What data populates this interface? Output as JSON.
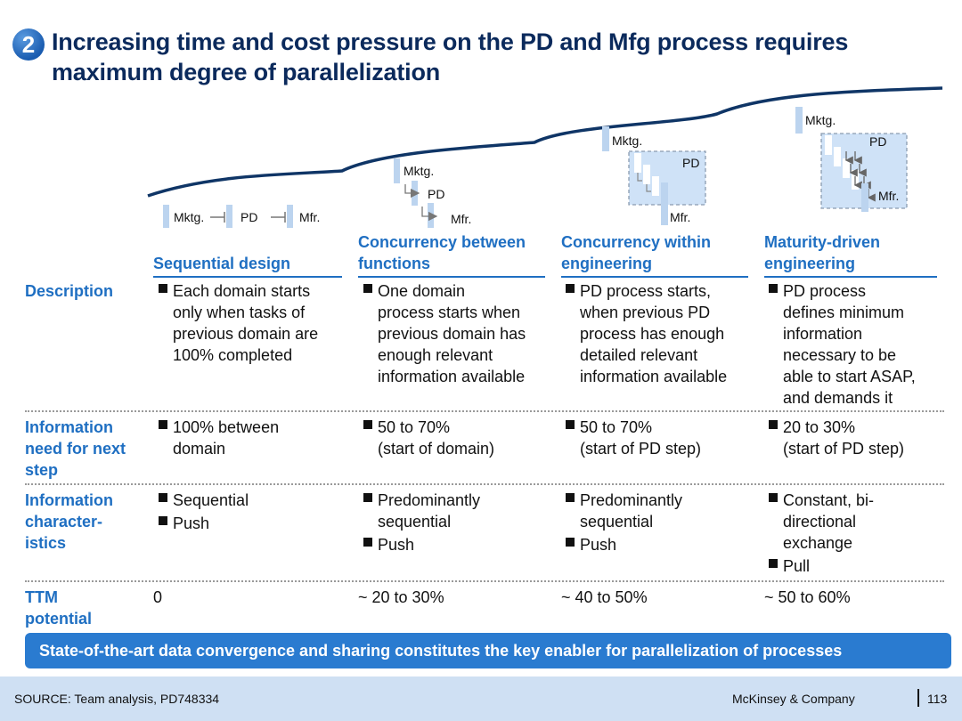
{
  "title": {
    "badge": "2",
    "line1": "Increasing time and cost pressure on the PD and Mfg process requires",
    "line2": "maximum degree of parallelization"
  },
  "diagram": {
    "mktg": "Mktg.",
    "pd": "PD",
    "mfr": "Mfr."
  },
  "columns": [
    {
      "heading_l1": "",
      "heading_l2": "Sequential design"
    },
    {
      "heading_l1": "Concurrency between",
      "heading_l2": "functions"
    },
    {
      "heading_l1": "Concurrency within",
      "heading_l2": "engineering"
    },
    {
      "heading_l1": "Maturity-driven",
      "heading_l2": "engineering"
    }
  ],
  "rows": {
    "description": {
      "label": "Description",
      "cells": [
        [
          "Each domain starts",
          "only when tasks of",
          "previous domain are",
          "100% completed"
        ],
        [
          "One domain",
          "process starts when",
          "previous domain has",
          "enough relevant",
          "information available"
        ],
        [
          "PD process starts,",
          "when previous PD",
          "process has enough",
          "detailed relevant",
          "information available"
        ],
        [
          "PD process",
          "defines minimum",
          "information",
          "necessary to be",
          "able to start ASAP,",
          "and demands it"
        ]
      ]
    },
    "info_need": {
      "label_l1": "Information",
      "label_l2": "need for next",
      "label_l3": "step",
      "cells": [
        [
          "100% between",
          "domain"
        ],
        [
          "50 to 70%",
          "(start of domain)"
        ],
        [
          "50 to 70%",
          "(start of PD step)"
        ],
        [
          "20 to 30%",
          "(start of PD step)"
        ]
      ]
    },
    "info_char": {
      "label_l1": "Information",
      "label_l2": "character-",
      "label_l3": "istics",
      "c1_b1": "Sequential",
      "c1_b2": "Push",
      "c2_b1_l1": "Predominantly",
      "c2_b1_l2": "sequential",
      "c2_b2": "Push",
      "c3_b1_l1": "Predominantly",
      "c3_b1_l2": "sequential",
      "c3_b2": "Push",
      "c4_b1_l1": "Constant, bi-",
      "c4_b1_l2": "directional",
      "c4_b1_l3": "exchange",
      "c4_b2": "Pull"
    },
    "ttm": {
      "label_l1": "TTM",
      "label_l2": "potential",
      "cells": [
        "0",
        "~ 20 to 30%",
        "~ 40 to 50%",
        "~ 50 to 60%"
      ]
    }
  },
  "banner": "State-of-the-art data convergence and sharing constitutes the key enabler for parallelization of processes",
  "footer": {
    "source": "SOURCE: Team analysis, PD748334",
    "company": "McKinsey & Company",
    "page": "113"
  },
  "colors": {
    "accent": "#1f6fc2",
    "title": "#0b2a5c",
    "banner": "#2a7bd0",
    "footer": "#cfe0f3",
    "curve": "#0f3566"
  }
}
